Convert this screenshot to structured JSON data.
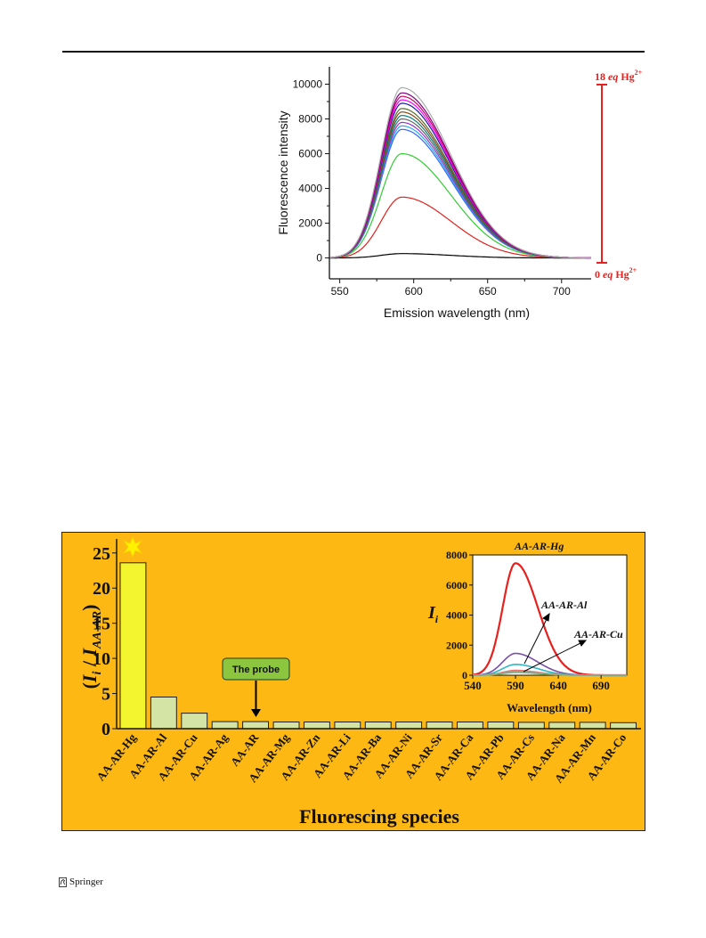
{
  "footer": {
    "publisher": "Springer",
    "icon": "springer-horse-icon"
  },
  "colors": {
    "fig2_background": "#fdb813",
    "bar_hg": "#f3f52e",
    "bar_default": "#d3e4a5",
    "label_red": "#e8201e",
    "probe_box": "#8cc63f"
  },
  "figure1": {
    "chart_data": {
      "type": "line",
      "xlabel": "Emission wavelength (nm)",
      "ylabel": "Fluorescence intensity",
      "xlim": [
        543,
        720
      ],
      "ylim": [
        -1200,
        11000
      ],
      "xticks": [
        550,
        600,
        650,
        700
      ],
      "yticks": [
        0,
        2000,
        4000,
        6000,
        8000,
        10000
      ],
      "peak_wavelength": 592,
      "series": [
        {
          "color": "#000000",
          "values": [
            0,
            250
          ]
        },
        {
          "color": "#e3211c",
          "values": [
            0,
            3500
          ]
        },
        {
          "color": "#33cc33",
          "values": [
            0,
            6000
          ]
        },
        {
          "color": "#3366ff",
          "values": [
            0,
            7400
          ]
        },
        {
          "color": "#22aaee",
          "values": [
            0,
            7600
          ]
        },
        {
          "color": "#9933cc",
          "values": [
            0,
            7800
          ]
        },
        {
          "color": "#666666",
          "values": [
            0,
            8000
          ]
        },
        {
          "color": "#008080",
          "values": [
            0,
            8200
          ]
        },
        {
          "color": "#8b4513",
          "values": [
            0,
            8400
          ]
        },
        {
          "color": "#556b2f",
          "values": [
            0,
            8600
          ]
        },
        {
          "color": "#1a1aa0",
          "values": [
            0,
            8900
          ]
        },
        {
          "color": "#ff00ff",
          "values": [
            0,
            9100
          ]
        },
        {
          "color": "#cc0066",
          "values": [
            0,
            9300
          ]
        },
        {
          "color": "#800080",
          "values": [
            0,
            9500
          ]
        },
        {
          "color": "#aaaaaa",
          "values": [
            0,
            9800
          ]
        }
      ],
      "annotations": {
        "top": {
          "prefix": "18 ",
          "italic": "eq",
          "suffix": " Hg",
          "sup": "2+"
        },
        "bottom": {
          "prefix": "0 ",
          "italic": "eq",
          "suffix": " Hg",
          "sup": "2+"
        }
      }
    }
  },
  "figure2": {
    "chart_data": [
      {
        "type": "bar",
        "categories": [
          "AA-AR-Hg",
          "AA-AR-Al",
          "AA-AR-Cu",
          "AA-AR-Ag",
          "AA-AR",
          "AA-AR-Mg",
          "AA-AR-Zn",
          "AA-AR-Li",
          "AA-AR-Ba",
          "AA-AR-Ni",
          "AA-AR-Sr",
          "AA-AR-Ca",
          "AA-AR-Pb",
          "AA-AR-Cs",
          "AA-AR-Na",
          "AA-AR-Mn",
          "AA-AR-Co"
        ],
        "values": [
          23.6,
          4.5,
          2.2,
          1.0,
          1.0,
          0.95,
          0.95,
          0.95,
          0.95,
          0.95,
          0.95,
          0.95,
          0.95,
          0.9,
          0.9,
          0.9,
          0.85
        ],
        "ylim": [
          0,
          27
        ],
        "yticks": [
          0,
          5,
          10,
          15,
          20,
          25
        ],
        "xlabel": "Fluorescing species",
        "ylabel": {
          "open": "(",
          "i1": "I",
          "s1": "i",
          "slash": " / ",
          "i2": "I",
          "s2": "AA-AR",
          "close": ")"
        },
        "callout": "The probe"
      },
      {
        "type": "line",
        "xlabel": "Wavelength (nm)",
        "ylabel": {
          "i": "I",
          "s": "i"
        },
        "xlim": [
          540,
          720
        ],
        "ylim": [
          0,
          8000
        ],
        "xticks": [
          540,
          590,
          640,
          690
        ],
        "yticks": [
          0,
          2000,
          4000,
          6000,
          8000
        ],
        "peak_wavelength": 590,
        "series": [
          {
            "name": "AA-AR-Hg",
            "color": "#e8201e",
            "values": [
              0,
              7450
            ]
          },
          {
            "name": "AA-AR-Al",
            "color": "#7b4fa6",
            "values": [
              0,
              1450
            ]
          },
          {
            "name": "AA-AR-Cu",
            "color": "#2fb5c5",
            "values": [
              0,
              720
            ]
          },
          {
            "color": "#e57373",
            "values": [
              0,
              320
            ]
          },
          {
            "color": "#9c9c9c",
            "values": [
              0,
              250
            ]
          },
          {
            "color": "#7fb27f",
            "values": [
              0,
              180
            ]
          }
        ]
      }
    ]
  }
}
